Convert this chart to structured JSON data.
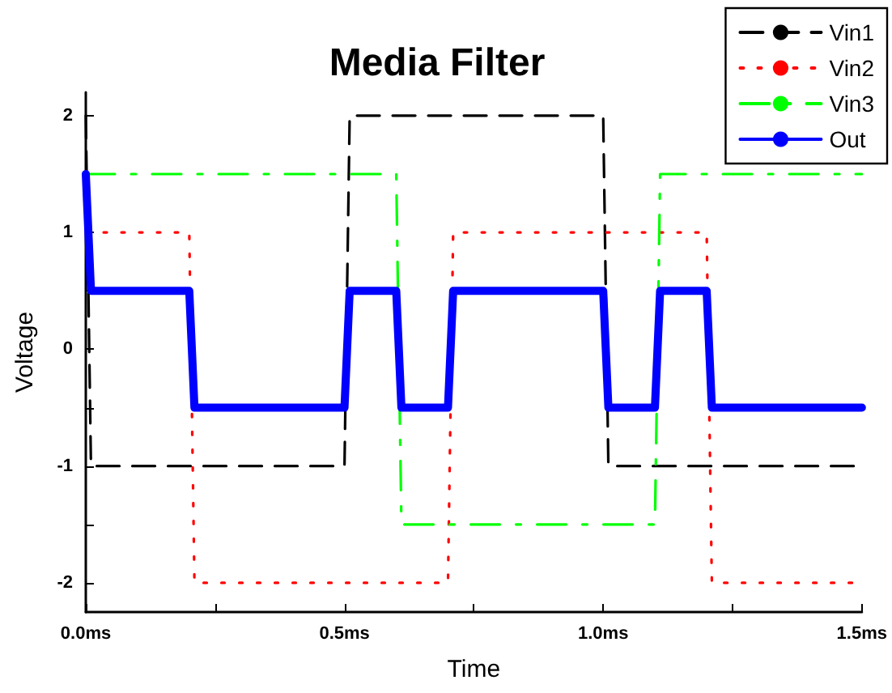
{
  "chart_data": {
    "type": "line",
    "title": "Media Filter",
    "xlabel": "Time",
    "ylabel": "Voltage",
    "xlim": [
      0,
      1.5
    ],
    "ylim": [
      -2.25,
      2.2
    ],
    "xticks": [
      {
        "value": 0,
        "label": "0.0ms"
      },
      {
        "value": 0.25,
        "label": null
      },
      {
        "value": 0.5,
        "label": "0.5ms"
      },
      {
        "value": 0.75,
        "label": null
      },
      {
        "value": 1.0,
        "label": "1.0ms"
      },
      {
        "value": 1.25,
        "label": null
      },
      {
        "value": 1.5,
        "label": "1.5ms"
      }
    ],
    "yticks": [
      -2,
      {
        "value": -1.5,
        "label": null
      },
      -1,
      {
        "value": -0.5,
        "label": null
      },
      0,
      {
        "value": 0.5,
        "label": null
      },
      1,
      {
        "value": 1.5,
        "label": null
      },
      2
    ],
    "grid": false,
    "legend": "top right",
    "marker": "none",
    "series": [
      {
        "name": "Vin1",
        "color": "#000000",
        "line_style": "dashed",
        "x": [
          0,
          0.01,
          0.5,
          0.51,
          1.0,
          1.01,
          1.5
        ],
        "values": [
          2,
          -1,
          -1,
          2,
          2,
          -1,
          -1
        ]
      },
      {
        "name": "Vin2",
        "color": "#ff0000",
        "line_style": "dotted",
        "x": [
          0,
          0.2,
          0.21,
          0.7,
          0.71,
          1.2,
          1.21,
          1.5
        ],
        "values": [
          1,
          1,
          -2,
          -2,
          1,
          1,
          -2,
          -2
        ]
      },
      {
        "name": "Vin3",
        "color": "#00ff00",
        "line_style": "dashdot",
        "x": [
          0,
          0.6,
          0.61,
          1.1,
          1.11,
          1.5
        ],
        "values": [
          1.5,
          1.5,
          -1.5,
          -1.5,
          1.5,
          1.5
        ]
      },
      {
        "name": "Out",
        "color": "#0000ff",
        "line_style": "solid",
        "x": [
          0,
          0.01,
          0.2,
          0.21,
          0.5,
          0.51,
          0.6,
          0.61,
          0.7,
          0.71,
          1.0,
          1.01,
          1.1,
          1.11,
          1.2,
          1.21,
          1.5
        ],
        "values": [
          1.5,
          0.5,
          0.5,
          -0.5,
          -0.5,
          0.5,
          0.5,
          -0.5,
          -0.5,
          0.5,
          0.5,
          -0.5,
          -0.5,
          0.5,
          0.5,
          -0.5,
          -0.5
        ]
      }
    ]
  }
}
